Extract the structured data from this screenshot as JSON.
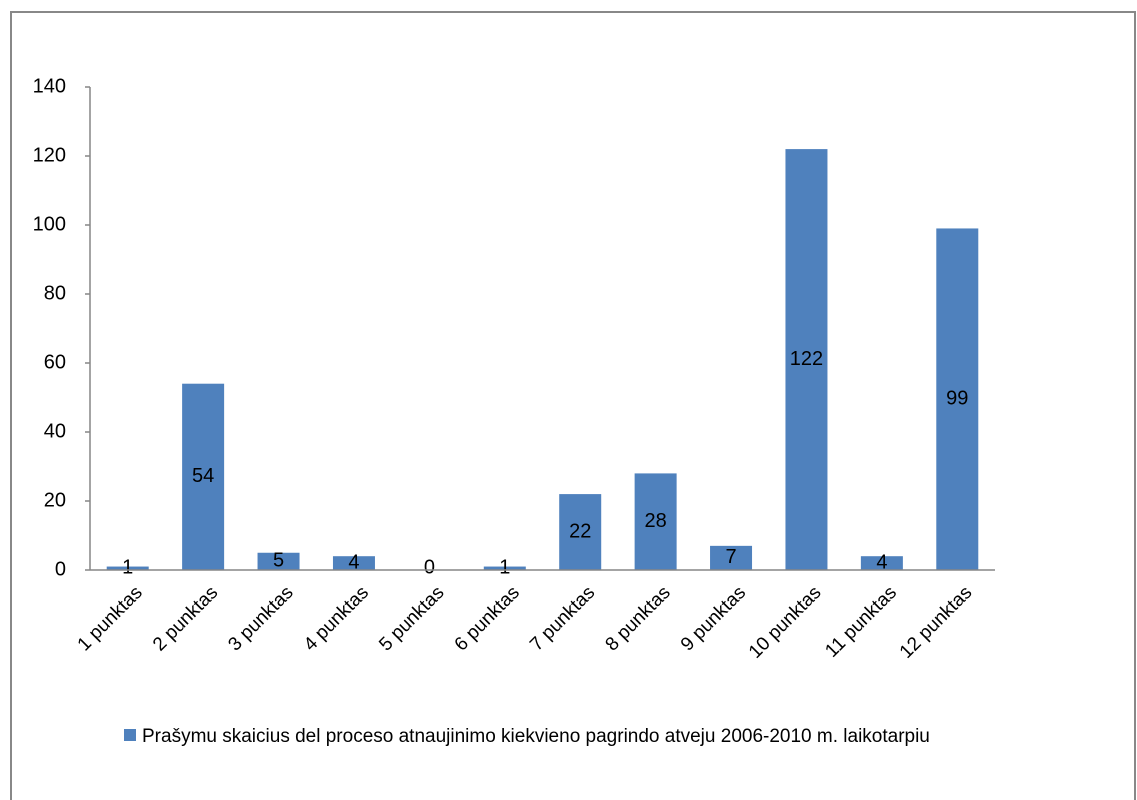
{
  "chart_data": {
    "type": "bar",
    "categories": [
      "1 punktas",
      "2 punktas",
      "3 punktas",
      "4 punktas",
      "5 punktas",
      "6 punktas",
      "7 punktas",
      "8 punktas",
      "9 punktas",
      "10 punktas",
      "11 punktas",
      "12 punktas"
    ],
    "series": [
      {
        "name": "Prašymu skaicius del proceso atnaujinimo kiekvieno pagrindo atveju 2006-2010 m. laikotarpiu",
        "color": "#4f81bd",
        "values": [
          1,
          54,
          5,
          4,
          0,
          1,
          22,
          28,
          7,
          122,
          4,
          99
        ]
      }
    ],
    "ylim": [
      0,
      140
    ],
    "yticks": [
      0,
      20,
      40,
      60,
      80,
      100,
      120,
      140
    ],
    "grid": false,
    "legend": "bottom"
  }
}
